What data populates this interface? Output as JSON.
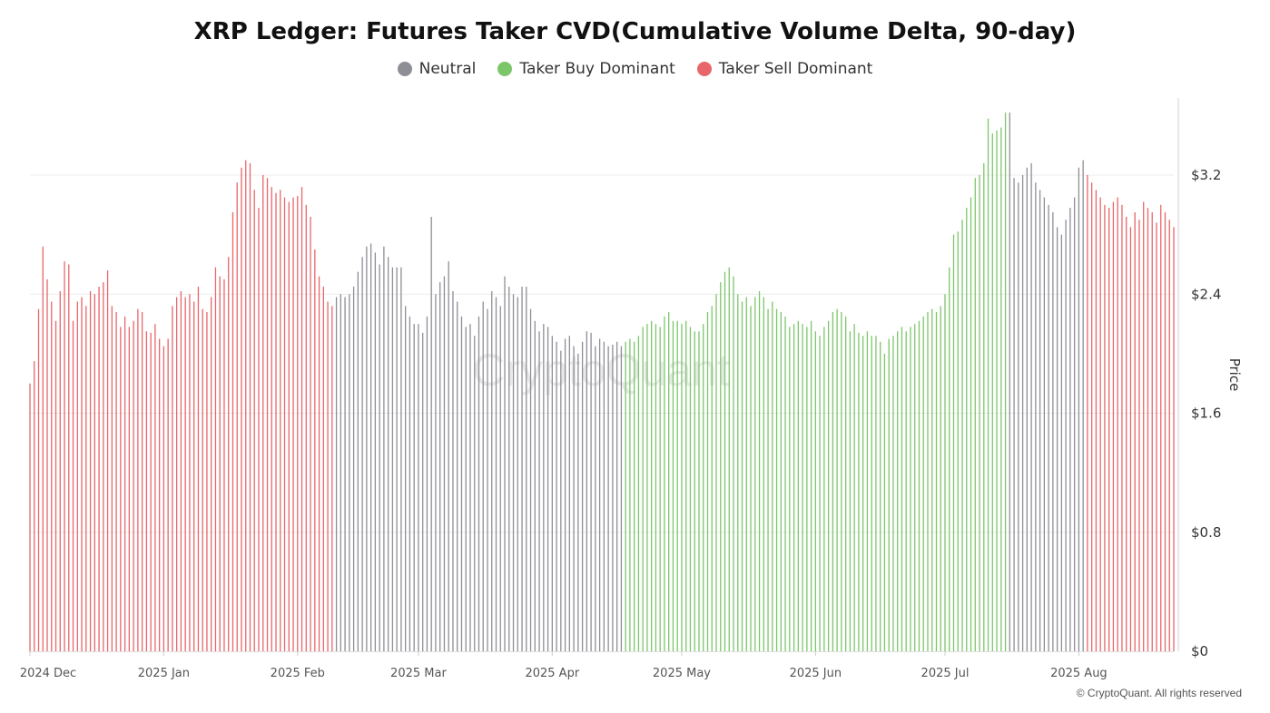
{
  "chart_data": {
    "type": "bar",
    "title": "XRP Ledger: Futures Taker CVD(Cumulative Volume Delta, 90-day)",
    "ylabel": "Price",
    "ylim": [
      0,
      3.6
    ],
    "yticks": [
      "$0",
      "$0.8",
      "$1.6",
      "$2.4",
      "$3.2"
    ],
    "ytick_values": [
      0,
      0.8,
      1.6,
      2.4,
      3.2
    ],
    "xticks": [
      "2024 Dec",
      "2025 Jan",
      "2025 Feb",
      "2025 Mar",
      "2025 Apr",
      "2025 May",
      "2025 Jun",
      "2025 Jul",
      "2025 Aug"
    ],
    "grid": true,
    "legend_placement": "top-center",
    "watermark": "CryptoQuant",
    "legend": [
      {
        "name": "Neutral",
        "color": "#8e8e96"
      },
      {
        "name": "Taker Buy Dominant",
        "color": "#7cc66a"
      },
      {
        "name": "Taker Sell Dominant",
        "color": "#e8666a"
      }
    ],
    "color_map": {
      "N": "#8e8e96",
      "B": "#7cc66a",
      "S": "#e8666a"
    },
    "start_date": "2024-12-01",
    "segments": [
      {
        "from": "2024-12-01",
        "to": "2025-02-09",
        "state": "S"
      },
      {
        "from": "2025-02-10",
        "to": "2025-04-17",
        "state": "N"
      },
      {
        "from": "2025-04-18",
        "to": "2025-07-15",
        "state": "B"
      },
      {
        "from": "2025-07-16",
        "to": "2025-08-02",
        "state": "N"
      },
      {
        "from": "2025-08-03",
        "to": "2025-08-31",
        "state": "S"
      }
    ],
    "values": [
      1.8,
      1.95,
      2.3,
      2.72,
      2.5,
      2.35,
      2.22,
      2.42,
      2.62,
      2.6,
      2.22,
      2.35,
      2.38,
      2.32,
      2.42,
      2.4,
      2.45,
      2.48,
      2.56,
      2.32,
      2.28,
      2.18,
      2.25,
      2.18,
      2.22,
      2.3,
      2.28,
      2.15,
      2.14,
      2.2,
      2.1,
      2.05,
      2.1,
      2.32,
      2.38,
      2.42,
      2.38,
      2.4,
      2.35,
      2.45,
      2.3,
      2.28,
      2.38,
      2.58,
      2.52,
      2.5,
      2.65,
      2.95,
      3.15,
      3.25,
      3.3,
      3.28,
      3.1,
      2.98,
      3.2,
      3.18,
      3.12,
      3.08,
      3.1,
      3.05,
      3.02,
      3.05,
      3.06,
      3.12,
      3.0,
      2.92,
      2.7,
      2.52,
      2.45,
      2.35,
      2.32,
      2.38,
      2.4,
      2.38,
      2.4,
      2.45,
      2.55,
      2.65,
      2.72,
      2.74,
      2.68,
      2.6,
      2.72,
      2.65,
      2.58,
      2.58,
      2.58,
      2.32,
      2.25,
      2.2,
      2.2,
      2.14,
      2.25,
      2.92,
      2.4,
      2.48,
      2.52,
      2.62,
      2.42,
      2.35,
      2.25,
      2.18,
      2.2,
      2.12,
      2.25,
      2.35,
      2.3,
      2.42,
      2.38,
      2.32,
      2.52,
      2.45,
      2.4,
      2.38,
      2.45,
      2.45,
      2.3,
      2.22,
      2.15,
      2.2,
      2.18,
      2.12,
      2.08,
      2.02,
      2.1,
      2.12,
      2.05,
      2.0,
      2.08,
      2.15,
      2.14,
      2.05,
      2.1,
      2.08,
      2.05,
      2.06,
      2.08,
      2.05,
      2.08,
      2.1,
      2.08,
      2.12,
      2.18,
      2.2,
      2.22,
      2.2,
      2.18,
      2.25,
      2.28,
      2.22,
      2.22,
      2.2,
      2.22,
      2.18,
      2.15,
      2.15,
      2.2,
      2.28,
      2.32,
      2.4,
      2.48,
      2.55,
      2.58,
      2.52,
      2.4,
      2.35,
      2.38,
      2.32,
      2.38,
      2.42,
      2.38,
      2.3,
      2.35,
      2.3,
      2.28,
      2.25,
      2.18,
      2.2,
      2.22,
      2.2,
      2.18,
      2.22,
      2.15,
      2.12,
      2.18,
      2.22,
      2.28,
      2.3,
      2.28,
      2.25,
      2.15,
      2.2,
      2.14,
      2.12,
      2.15,
      2.12,
      2.12,
      2.08,
      2.0,
      2.1,
      2.12,
      2.15,
      2.18,
      2.15,
      2.18,
      2.2,
      2.22,
      2.25,
      2.28,
      2.3,
      2.28,
      2.32,
      2.4,
      2.58,
      2.8,
      2.82,
      2.9,
      2.98,
      3.05,
      3.18,
      3.2,
      3.28,
      3.58,
      3.48,
      3.5,
      3.52,
      3.62,
      3.62,
      3.18,
      3.15,
      3.2,
      3.25,
      3.28,
      3.15,
      3.1,
      3.05,
      3.0,
      2.95,
      2.85,
      2.8,
      2.9,
      2.98,
      3.05,
      3.25,
      3.3,
      3.2,
      3.15,
      3.1,
      3.05,
      3.0,
      2.98,
      3.02,
      3.05,
      3.0,
      2.92,
      2.85,
      2.95,
      2.9,
      3.02,
      2.98,
      2.95,
      2.88,
      3.0,
      2.95,
      2.9,
      2.85
    ]
  },
  "copyright": "© CryptoQuant. All rights reserved"
}
